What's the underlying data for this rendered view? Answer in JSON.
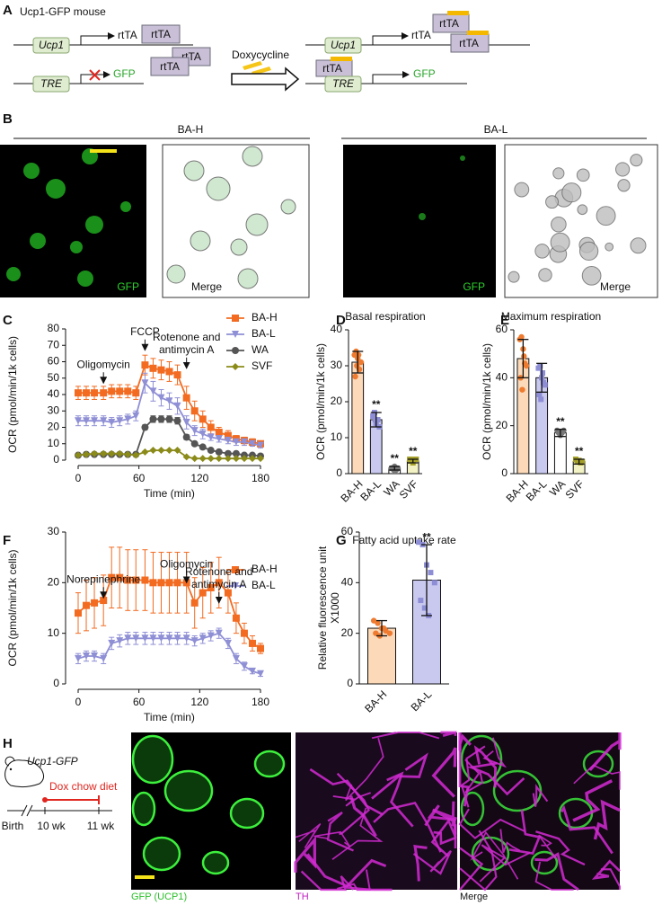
{
  "panel_labels": [
    "A",
    "B",
    "C",
    "D",
    "E",
    "F",
    "G",
    "H"
  ],
  "panel_a": {
    "title": "Ucp1-GFP mouse",
    "gene": "Ucp1",
    "promoter": "TRE",
    "transactivator": "rtTA",
    "reporter": "GFP",
    "drug": "Doxycycline"
  },
  "panel_b": {
    "groups": [
      "BA-H",
      "BA-L"
    ],
    "channels": [
      "GFP",
      "Merge"
    ]
  },
  "panel_h": {
    "mouse": "Ucp1-GFP",
    "diet": "Dox chow diet",
    "timepoints": [
      "Birth",
      "10 wk",
      "11 wk"
    ],
    "channels": [
      "GFP (UCP1)",
      "TH",
      "Merge"
    ]
  },
  "chart_data": [
    {
      "type": "line",
      "ylabel": "OCR (pmol/min/1k cells)",
      "xlabel": "Time (min)",
      "xlim": [
        0,
        180
      ],
      "xticks": [
        0,
        60,
        120,
        180
      ],
      "ylim": [
        0,
        80
      ],
      "yticks": [
        0,
        10,
        20,
        30,
        40,
        50,
        60,
        70,
        80
      ],
      "legend": "right",
      "x": [
        0,
        8,
        16,
        25,
        33,
        41,
        49,
        57,
        66,
        74,
        82,
        90,
        98,
        107,
        115,
        123,
        131,
        139,
        148,
        156,
        164,
        172,
        180
      ],
      "series": [
        {
          "name": "BA-H",
          "color": "#f26b21",
          "marker": "square",
          "values": [
            41,
            41,
            41,
            41,
            42,
            42,
            42,
            41,
            58,
            56,
            55,
            54,
            52,
            38,
            30,
            25,
            20,
            17,
            15,
            13,
            12,
            11,
            10
          ],
          "errors": [
            4,
            4,
            4,
            4,
            4,
            4,
            4,
            4,
            6,
            6,
            6,
            6,
            6,
            7,
            6,
            5,
            4,
            3,
            3,
            2,
            2,
            2,
            1.5
          ]
        },
        {
          "name": "BA-L",
          "color": "#8f8fd6",
          "marker": "triangle",
          "values": [
            24,
            24,
            24,
            24,
            23,
            24,
            25,
            27,
            47,
            42,
            38,
            36,
            33,
            23,
            18,
            16,
            14,
            13,
            12,
            11,
            11,
            10,
            9
          ],
          "errors": [
            3,
            3,
            3,
            3,
            3,
            3,
            3,
            3,
            6,
            6,
            5,
            5,
            5,
            4,
            3,
            3,
            2,
            2,
            2,
            2,
            2,
            1.5,
            1.5
          ]
        },
        {
          "name": "WA",
          "color": "#555555",
          "marker": "circle",
          "values": [
            3,
            3.5,
            3.5,
            3.5,
            3.5,
            3.5,
            3.5,
            3.5,
            20,
            25,
            25,
            25,
            24,
            14,
            10,
            8,
            6,
            5,
            4,
            4,
            3,
            3,
            2.5
          ],
          "errors": [
            0.5,
            0.5,
            0.5,
            0.5,
            0.5,
            0.5,
            0.5,
            0.5,
            1.5,
            2,
            2,
            2,
            2,
            1.5,
            1,
            1,
            1,
            0.5,
            0.5,
            0.5,
            0.5,
            0.5,
            0.5
          ]
        },
        {
          "name": "SVF",
          "color": "#8b8b1a",
          "marker": "diamond",
          "values": [
            3,
            3.5,
            4,
            4,
            4,
            4,
            3.5,
            3,
            5,
            6,
            6,
            6,
            6,
            2,
            1,
            1,
            1,
            1,
            1,
            1,
            1,
            1,
            1
          ],
          "errors": [
            0.5,
            0.5,
            0.5,
            0.5,
            0.5,
            0.5,
            0.5,
            0.5,
            0.5,
            0.5,
            0.5,
            0.5,
            0.5,
            0.5,
            0.3,
            0.3,
            0.3,
            0.3,
            0.3,
            0.3,
            0.3,
            0.3,
            0.3
          ]
        }
      ],
      "annotations": [
        {
          "lines": [
            "Oligomycin"
          ],
          "x": 25,
          "y": 47
        },
        {
          "lines": [
            "FCCP"
          ],
          "x": 66,
          "y": 67
        },
        {
          "lines": [
            "Rotenone and",
            "antimycin A"
          ],
          "x": 107,
          "y": 56
        }
      ]
    },
    {
      "type": "bar",
      "title": "Basal respiration",
      "ylabel": "OCR (pmol/min/1k cells)",
      "ylim": [
        0,
        40
      ],
      "yticks": [
        0,
        10,
        20,
        30,
        40
      ],
      "categories": [
        "BA-H",
        "BA-L",
        "WA",
        "SVF"
      ],
      "values": [
        31,
        15,
        1.5,
        3.5
      ],
      "errors": [
        3,
        2,
        0.5,
        0.5
      ],
      "colors": [
        "#fcd9b8",
        "#c9c9f0",
        "#ffffff",
        "#f3f2c4"
      ],
      "point_colors": [
        "#ee7b30",
        "#8e8ed6",
        "#777777",
        "#a6a12a"
      ],
      "points": [
        [
          33,
          34,
          32,
          29,
          31,
          27,
          30,
          33
        ],
        [
          16,
          17,
          14,
          15,
          13,
          16,
          15
        ],
        [
          1.5,
          1.5,
          2,
          1,
          1.5,
          1.5,
          1
        ],
        [
          4,
          3.5,
          3,
          4,
          4,
          3.5,
          4
        ]
      ],
      "significance": [
        null,
        "**",
        "**",
        "**"
      ]
    },
    {
      "type": "bar",
      "title": "Maximum respiration",
      "ylabel": "OCR (pmol/min/1k cells)",
      "ylim": [
        0,
        60
      ],
      "yticks": [
        0,
        20,
        40,
        60
      ],
      "categories": [
        "BA-H",
        "BA-L",
        "WA",
        "SVF"
      ],
      "values": [
        48,
        40,
        17,
        5
      ],
      "errors": [
        8,
        6,
        1.5,
        1
      ],
      "colors": [
        "#fcd9b8",
        "#c9c9f0",
        "#ffffff",
        "#f3f2c4"
      ],
      "point_colors": [
        "#ee7b30",
        "#8e8ed6",
        "#777777",
        "#a6a12a"
      ],
      "points": [
        [
          56,
          57,
          52,
          46,
          45,
          40,
          35,
          49
        ],
        [
          44,
          45,
          40,
          38,
          37,
          33,
          31,
          42
        ],
        [
          18,
          17,
          16,
          17,
          18
        ],
        [
          6,
          5,
          5.5,
          4.5,
          5
        ]
      ],
      "significance": [
        null,
        null,
        "**",
        "**"
      ]
    },
    {
      "type": "line",
      "ylabel": "OCR (pmol/min/1k cells)",
      "xlabel": "Time (min)",
      "xlim": [
        0,
        180
      ],
      "xticks": [
        0,
        60,
        120,
        180
      ],
      "ylim": [
        0,
        30
      ],
      "yticks": [
        0,
        10,
        20,
        30
      ],
      "legend": "right",
      "x": [
        0,
        8,
        16,
        25,
        33,
        41,
        49,
        57,
        66,
        74,
        82,
        90,
        98,
        107,
        115,
        123,
        131,
        139,
        148,
        156,
        164,
        172,
        180
      ],
      "series": [
        {
          "name": "BA-H",
          "color": "#f26b21",
          "marker": "square",
          "values": [
            14,
            15.5,
            16,
            16.5,
            21,
            21,
            20.5,
            20.5,
            20.5,
            20,
            20,
            20,
            20,
            20,
            16,
            18,
            19,
            20,
            18,
            13,
            10,
            8,
            7
          ],
          "errors": [
            4,
            5,
            5,
            5,
            6,
            6,
            6,
            6,
            6,
            6,
            6,
            6,
            6,
            6,
            5,
            5,
            5,
            5,
            4,
            3,
            2,
            1.5,
            1
          ]
        },
        {
          "name": "BA-L",
          "color": "#8f8fd6",
          "marker": "triangle",
          "values": [
            5,
            5.5,
            5.5,
            5,
            8,
            8.5,
            9,
            9,
            9,
            9,
            9,
            9,
            9,
            9,
            8.5,
            9,
            9.5,
            10,
            8,
            5,
            3.5,
            2.5,
            2
          ],
          "errors": [
            1,
            1,
            1,
            1,
            1.2,
            1.2,
            1.2,
            1.2,
            1.2,
            1.2,
            1.2,
            1.2,
            1.2,
            1.2,
            1,
            1,
            1,
            1,
            1,
            1,
            0.8,
            0.5,
            0.5
          ]
        }
      ],
      "annotations": [
        {
          "lines": [
            "Norepinephrine"
          ],
          "x": 25,
          "y": 17
        },
        {
          "lines": [
            "Oligomycin"
          ],
          "x": 107,
          "y": 20
        },
        {
          "lines": [
            "Rotenone and",
            "antimycin A"
          ],
          "x": 139,
          "y": 16
        }
      ]
    },
    {
      "type": "bar",
      "title": "Fatty acid uptake rate",
      "ylabel": [
        "Relative fluorescence unit",
        "X1000"
      ],
      "ylim": [
        0,
        60
      ],
      "yticks": [
        0,
        20,
        40,
        60
      ],
      "categories": [
        "BA-H",
        "BA-L"
      ],
      "values": [
        22,
        41
      ],
      "errors": [
        3,
        14
      ],
      "colors": [
        "#fcd9b8",
        "#c9c9f0"
      ],
      "point_colors": [
        "#ee7b30",
        "#8e8ed6"
      ],
      "points": [
        [
          25,
          24,
          22,
          21,
          20,
          20,
          19,
          22
        ],
        [
          56,
          55,
          47,
          44,
          40,
          33,
          30,
          27
        ]
      ],
      "significance": [
        null,
        "**"
      ]
    }
  ]
}
